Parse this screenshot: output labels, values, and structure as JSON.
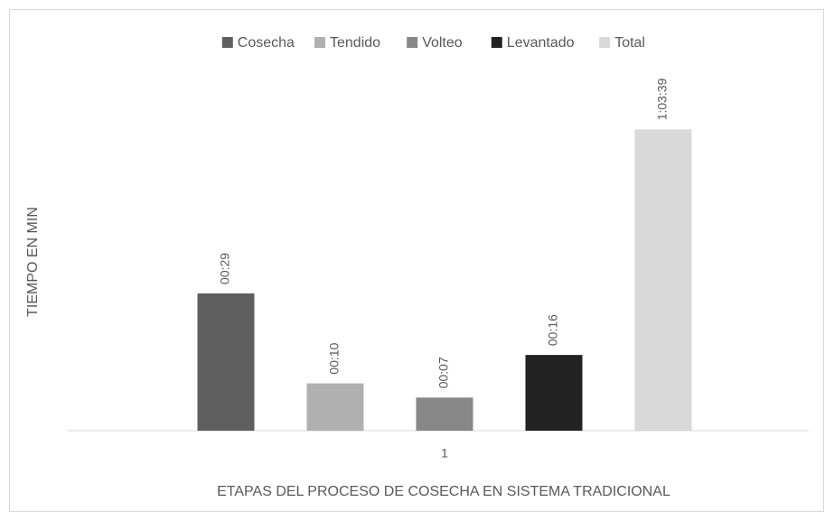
{
  "chart_data": {
    "type": "bar",
    "x_label": "ETAPAS DEL PROCESO DE COSECHA EN SISTEMA TRADICIONAL",
    "y_label": "TIEMPO EN MIN",
    "categories": [
      "1"
    ],
    "series": [
      {
        "name": "Cosecha",
        "color": "#5f5f5f",
        "values": [
          29
        ],
        "value_labels": [
          "00:29"
        ]
      },
      {
        "name": "Tendido",
        "color": "#b0b0b0",
        "values": [
          10
        ],
        "value_labels": [
          "00:10"
        ]
      },
      {
        "name": "Volteo",
        "color": "#878787",
        "values": [
          7
        ],
        "value_labels": [
          "00:07"
        ]
      },
      {
        "name": "Levantado",
        "color": "#222222",
        "values": [
          16
        ],
        "value_labels": [
          "00:16"
        ]
      },
      {
        "name": "Total",
        "color": "#d9d9d9",
        "values": [
          63.65
        ],
        "value_labels": [
          "1:03:39"
        ]
      }
    ],
    "ylim": [
      0,
      70
    ],
    "grid": false,
    "legend": "top"
  }
}
